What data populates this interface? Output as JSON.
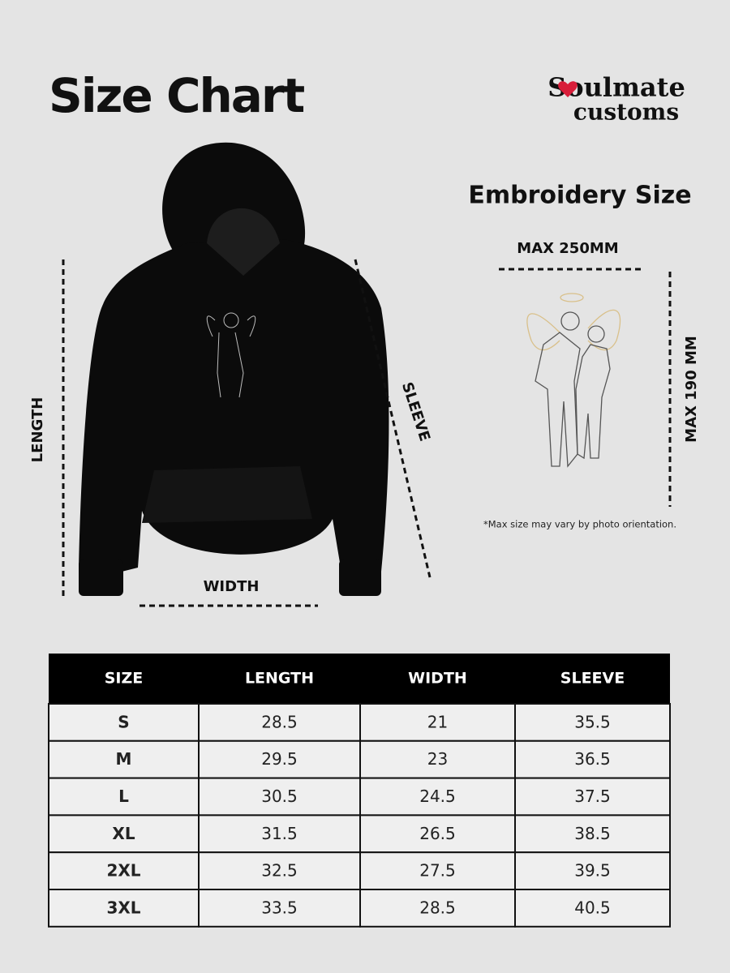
{
  "header": {
    "title": "Size Chart",
    "brand": [
      "Soulmate",
      "customs"
    ]
  },
  "hoodie": {
    "length_label": "LENGTH",
    "width_label": "WIDTH",
    "sleeve_label": "SLEEVE"
  },
  "embroidery": {
    "title": "Embroidery Size",
    "max_width": "MAX 250MM",
    "max_height": "MAX 190 MM",
    "note": "*Max size may vary by photo orientation."
  },
  "table": {
    "columns": [
      "SIZE",
      "LENGTH",
      "WIDTH",
      "SLEEVE"
    ],
    "rows": [
      [
        "S",
        28.5,
        21,
        35.5
      ],
      [
        "M",
        29.5,
        23,
        36.5
      ],
      [
        "L",
        30.5,
        24.5,
        37.5
      ],
      [
        "XL",
        31.5,
        26.5,
        38.5
      ],
      [
        "2XL",
        32.5,
        27.5,
        39.5
      ],
      [
        "3XL",
        33.5,
        28.5,
        40.5
      ]
    ]
  }
}
